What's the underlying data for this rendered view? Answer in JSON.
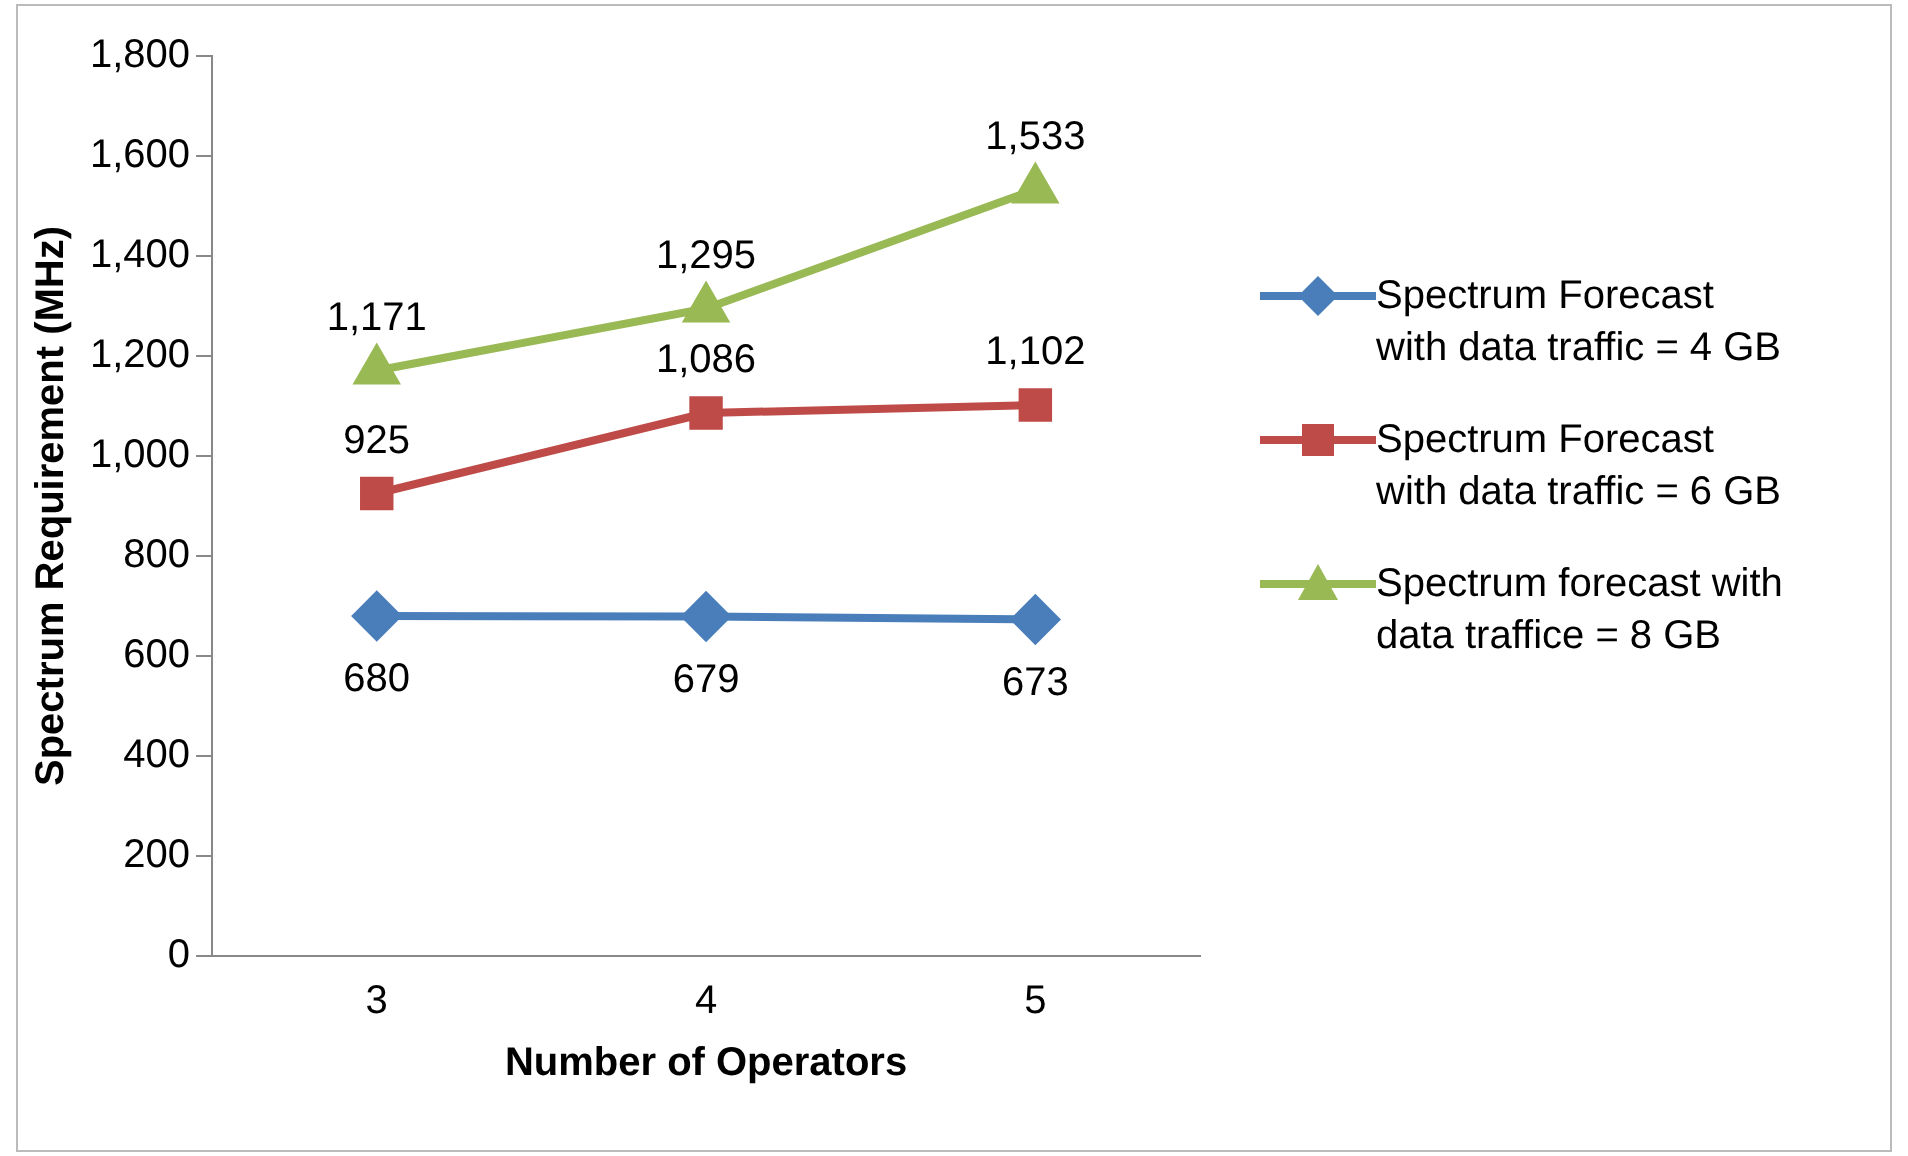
{
  "chart_data": {
    "type": "line",
    "xlabel": "Number of Operators",
    "ylabel": "Spectrum Requirement (MHz)",
    "categories": [
      "3",
      "4",
      "5"
    ],
    "series": [
      {
        "name": "Spectrum Forecast with data traffic = 4 GB",
        "color": "#4a7ebb",
        "marker": "diamond",
        "values": [
          680,
          679,
          673
        ],
        "value_labels": [
          "680",
          "679",
          "673"
        ]
      },
      {
        "name": "Spectrum Forecast with data traffic = 6 GB",
        "color": "#be4b48",
        "marker": "square",
        "values": [
          925,
          1086,
          1102
        ],
        "value_labels": [
          "925",
          "1,086",
          "1,102"
        ]
      },
      {
        "name": "Spectrum forecast with data traffice = 8 GB",
        "color": "#98b954",
        "marker": "triangle",
        "values": [
          1171,
          1295,
          1533
        ],
        "value_labels": [
          "1,171",
          "1,295",
          "1,533"
        ]
      }
    ],
    "ylim": [
      0,
      1800
    ],
    "yticks": [
      0,
      200,
      400,
      600,
      800,
      {
        "value": 1000,
        "label": "1,000"
      },
      {
        "value": 1200,
        "label": "1,200"
      },
      {
        "value": 1400,
        "label": "1,400"
      },
      {
        "value": 1600,
        "label": "1,600"
      },
      {
        "value": 1800,
        "label": "1,800"
      }
    ],
    "grid": false,
    "legend": "right",
    "line_style": "solid"
  }
}
